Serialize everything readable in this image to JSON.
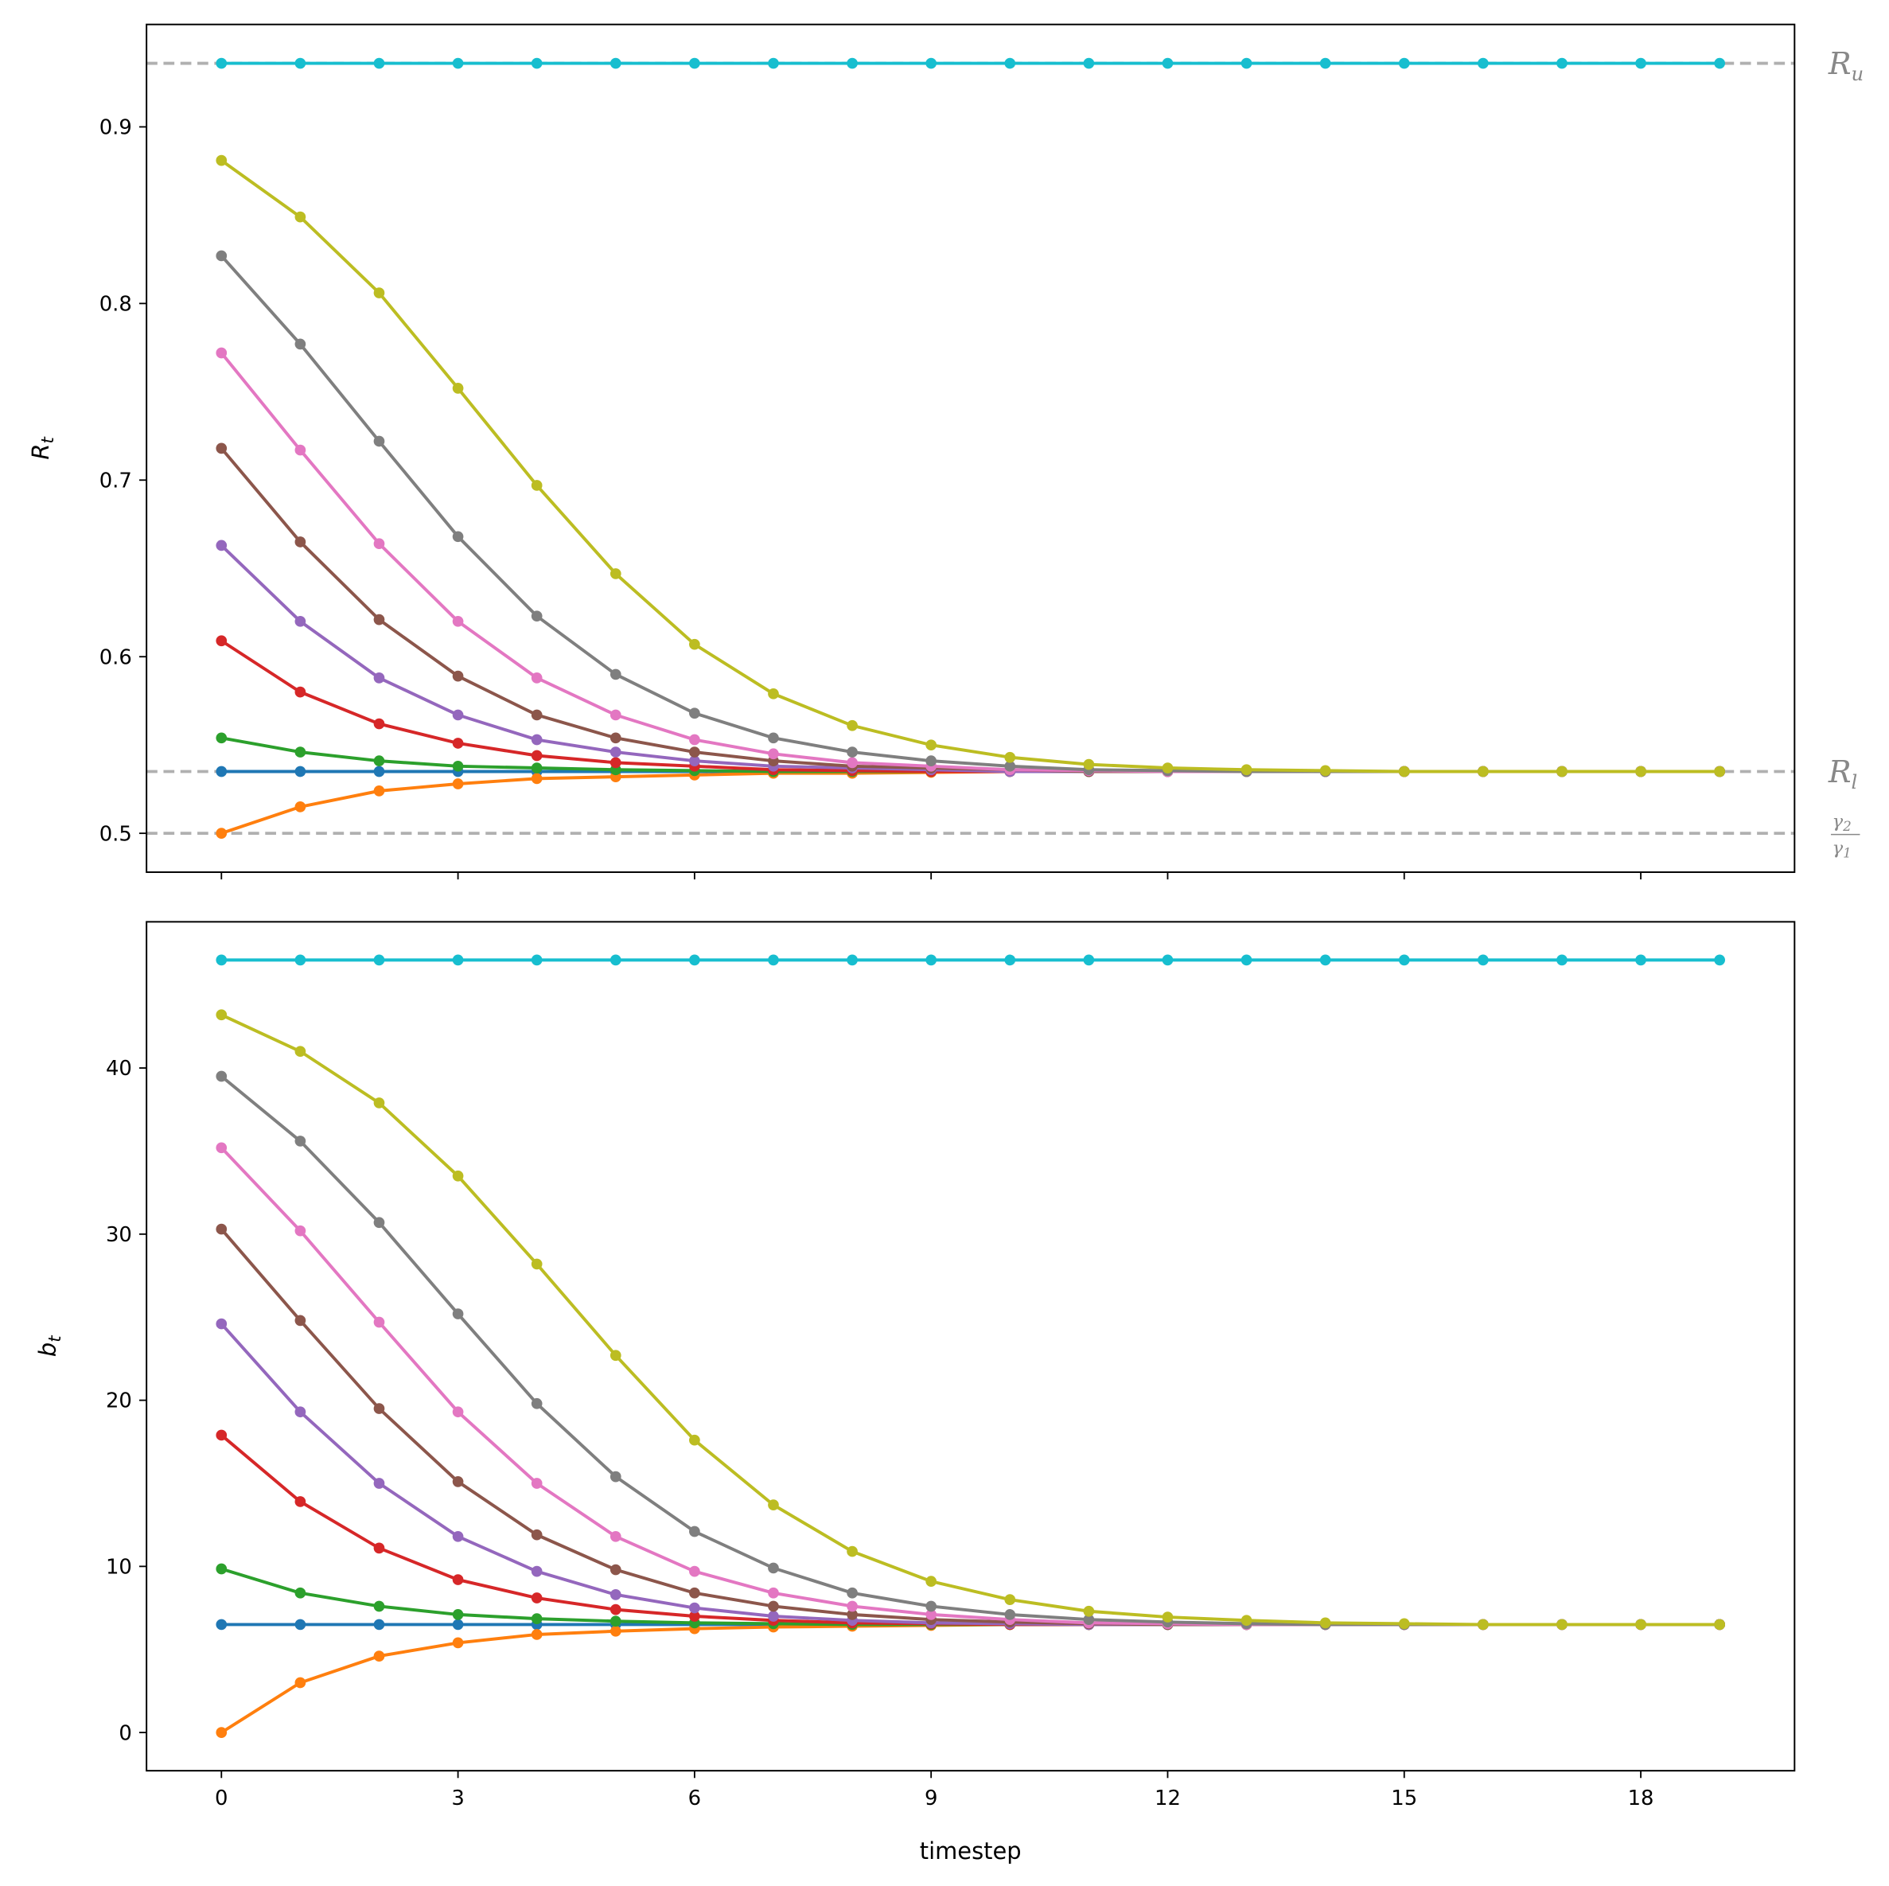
{
  "chart_data": [
    {
      "type": "line",
      "ylabel": "R_t",
      "ylabel_main": "R",
      "ylabel_sub": "t",
      "ylim": [
        0.478,
        0.958
      ],
      "yticks": [
        "0.5",
        "0.6",
        "0.7",
        "0.8",
        "0.9"
      ],
      "ytick_values": [
        0.5,
        0.6,
        0.7,
        0.8,
        0.9
      ],
      "reference_lines": [
        {
          "label": "R_u",
          "main": "R",
          "sub": "u",
          "value": 0.936
        },
        {
          "label": "R_l",
          "main": "R",
          "sub": "l",
          "value": 0.535
        },
        {
          "label": "γ2/γ1",
          "num": "γ",
          "num_sub": "2",
          "den": "γ",
          "den_sub": "1",
          "value": 0.5
        }
      ],
      "series": [
        {
          "name": "s0",
          "color": "#1f77b4",
          "values": [
            0.535
          ]
        },
        {
          "name": "s1",
          "color": "#ff7f0e",
          "values": [
            0.5,
            0.515,
            0.524,
            0.528,
            0.531,
            0.532,
            0.533,
            0.534,
            0.534,
            0.5345,
            0.535
          ]
        },
        {
          "name": "s2",
          "color": "#2ca02c",
          "values": [
            0.554,
            0.546,
            0.541,
            0.538,
            0.537,
            0.536,
            0.5355,
            0.535
          ]
        },
        {
          "name": "s3",
          "color": "#d62728",
          "values": [
            0.609,
            0.58,
            0.562,
            0.551,
            0.544,
            0.54,
            0.538,
            0.536,
            0.5355,
            0.535
          ]
        },
        {
          "name": "s4",
          "color": "#9467bd",
          "values": [
            0.663,
            0.62,
            0.588,
            0.567,
            0.553,
            0.546,
            0.541,
            0.538,
            0.537,
            0.536,
            0.535
          ]
        },
        {
          "name": "s5",
          "color": "#8c564b",
          "values": [
            0.718,
            0.665,
            0.621,
            0.589,
            0.567,
            0.554,
            0.546,
            0.541,
            0.538,
            0.537,
            0.536,
            0.535
          ]
        },
        {
          "name": "s6",
          "color": "#e377c2",
          "values": [
            0.772,
            0.717,
            0.664,
            0.62,
            0.588,
            0.567,
            0.553,
            0.545,
            0.54,
            0.538,
            0.536,
            0.5355,
            0.535
          ]
        },
        {
          "name": "s7",
          "color": "#7f7f7f",
          "values": [
            0.827,
            0.777,
            0.722,
            0.668,
            0.623,
            0.59,
            0.568,
            0.554,
            0.546,
            0.541,
            0.538,
            0.536,
            0.5355,
            0.535
          ]
        },
        {
          "name": "s8",
          "color": "#bcbd22",
          "values": [
            0.881,
            0.849,
            0.806,
            0.752,
            0.697,
            0.647,
            0.607,
            0.579,
            0.561,
            0.55,
            0.543,
            0.539,
            0.537,
            0.536,
            0.5355,
            0.535
          ]
        },
        {
          "name": "s9",
          "color": "#17becf",
          "values": [
            0.936
          ]
        }
      ]
    },
    {
      "type": "line",
      "ylabel": "b_t",
      "ylabel_main": "b",
      "ylabel_sub": "t",
      "xlabel": "timestep",
      "ylim": [
        -2.3,
        48.8
      ],
      "yticks": [
        "0",
        "10",
        "20",
        "30",
        "40"
      ],
      "ytick_values": [
        0,
        10,
        20,
        30,
        40
      ],
      "xticks": [
        "0",
        "3",
        "6",
        "9",
        "12",
        "15",
        "18"
      ],
      "xtick_values": [
        0,
        3,
        6,
        9,
        12,
        15,
        18
      ],
      "series": [
        {
          "name": "s0",
          "color": "#1f77b4",
          "values": [
            6.5
          ]
        },
        {
          "name": "s1",
          "color": "#ff7f0e",
          "values": [
            0,
            3.0,
            4.6,
            5.4,
            5.9,
            6.1,
            6.25,
            6.35,
            6.4,
            6.45,
            6.5
          ]
        },
        {
          "name": "s2",
          "color": "#2ca02c",
          "values": [
            9.85,
            8.4,
            7.6,
            7.1,
            6.85,
            6.7,
            6.6,
            6.55,
            6.5
          ]
        },
        {
          "name": "s3",
          "color": "#d62728",
          "values": [
            17.9,
            13.9,
            11.1,
            9.2,
            8.1,
            7.4,
            7.0,
            6.75,
            6.6,
            6.55,
            6.5
          ]
        },
        {
          "name": "s4",
          "color": "#9467bd",
          "values": [
            24.6,
            19.3,
            15.0,
            11.8,
            9.7,
            8.3,
            7.5,
            7.0,
            6.75,
            6.6,
            6.55,
            6.5
          ]
        },
        {
          "name": "s5",
          "color": "#8c564b",
          "values": [
            30.3,
            24.8,
            19.5,
            15.1,
            11.9,
            9.8,
            8.4,
            7.6,
            7.1,
            6.8,
            6.65,
            6.55,
            6.5
          ]
        },
        {
          "name": "s6",
          "color": "#e377c2",
          "values": [
            35.2,
            30.2,
            24.7,
            19.3,
            15.0,
            11.8,
            9.7,
            8.4,
            7.6,
            7.1,
            6.8,
            6.6,
            6.55,
            6.5
          ]
        },
        {
          "name": "s7",
          "color": "#7f7f7f",
          "values": [
            39.5,
            35.6,
            30.7,
            25.2,
            19.8,
            15.4,
            12.1,
            9.9,
            8.4,
            7.6,
            7.1,
            6.8,
            6.65,
            6.55,
            6.5
          ]
        },
        {
          "name": "s8",
          "color": "#bcbd22",
          "values": [
            43.2,
            41.0,
            37.9,
            33.5,
            28.2,
            22.7,
            17.6,
            13.7,
            10.9,
            9.1,
            8.0,
            7.3,
            6.95,
            6.75,
            6.6,
            6.55,
            6.5
          ]
        },
        {
          "name": "s9",
          "color": "#17becf",
          "values": [
            46.5
          ]
        }
      ]
    }
  ],
  "n_points": 20,
  "xlim": [
    -0.95,
    19.95
  ]
}
